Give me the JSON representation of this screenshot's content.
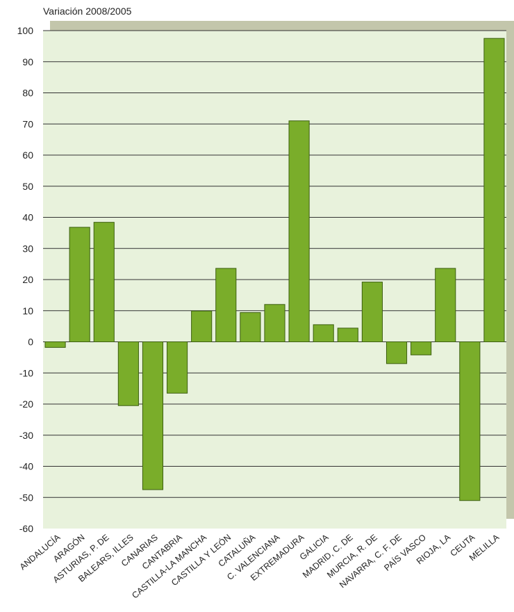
{
  "chart_data": {
    "type": "bar",
    "ylabel": "Variación 2008/2005",
    "ylim": [
      -60,
      100
    ],
    "ytick_step": 10,
    "grid": true,
    "legend": "none",
    "categories": [
      "ANDALUCÍA",
      "ARAGÓN",
      "ASTURIAS, P. DE",
      "BALEARS, ILLES",
      "CANARIAS",
      "CANTABRIA",
      "CASTILLA-LA MANCHA",
      "CASTILLA Y LEÓN",
      "CATALUÑA",
      "C. VALENCIANA",
      "EXTREMADURA",
      "GALICIA",
      "MADRID, C. DE",
      "MURCIA, R. DE",
      "NAVARRA, C. F. DE",
      "PAÍS VASCO",
      "RIOJA, LA",
      "CEUTA",
      "MELILLA"
    ],
    "values": [
      -1.8,
      36.8,
      38.4,
      -20.5,
      -47.5,
      -16.5,
      9.9,
      23.6,
      9.4,
      12.0,
      71.0,
      5.5,
      4.4,
      19.2,
      -7.0,
      -4.2,
      23.6,
      -51.0,
      97.5
    ]
  },
  "colors": {
    "bar_fill": "#7aad2a",
    "bar_stroke": "#3c5f10",
    "plot_background": "#e8f2dc",
    "shadow": "#c3c6ab",
    "grid": "#333333"
  }
}
